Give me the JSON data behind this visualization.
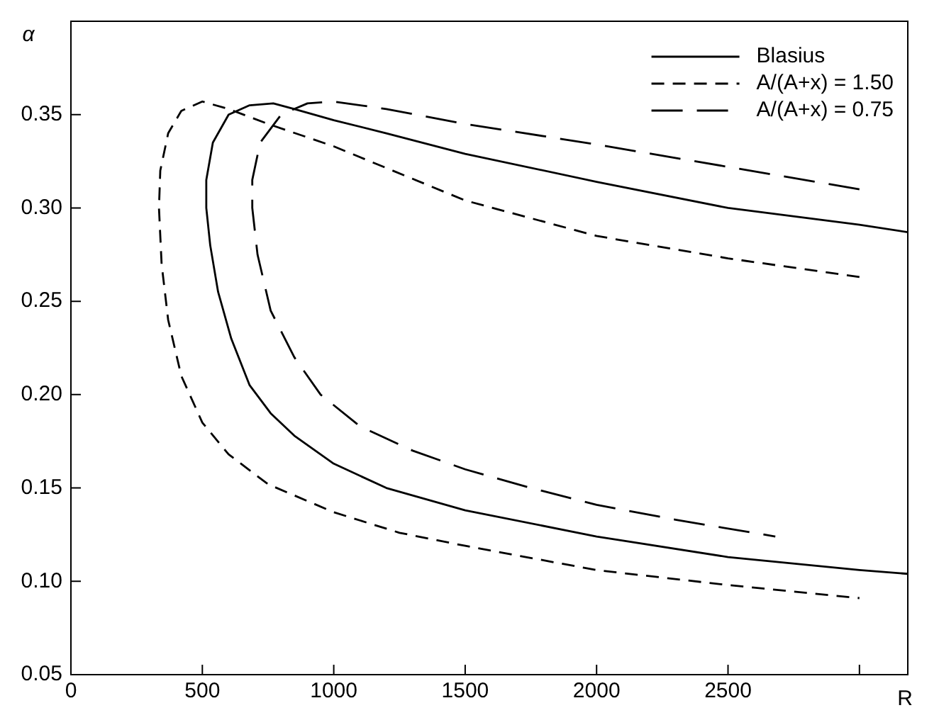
{
  "chart_data": {
    "type": "line",
    "xlabel": "R",
    "ylabel": "α",
    "xlim": [
      0,
      3184
    ],
    "ylim": [
      0.05,
      0.4
    ],
    "xticks": [
      0,
      500,
      1000,
      1500,
      2000,
      2500,
      {
        "value": 3000,
        "label": null
      }
    ],
    "yticks": [
      0.05,
      {
        "value": 0.1,
        "label": "0.10"
      },
      0.15,
      {
        "value": 0.2,
        "label": "0.20"
      },
      0.25,
      {
        "value": 0.3,
        "label": "0.30"
      },
      0.35
    ],
    "grid": false,
    "legend": "top right",
    "marker": "none",
    "series": [
      {
        "name": "Blasius",
        "color": "#000000",
        "line_style": "solid",
        "x": [
          3184,
          3000,
          2500,
          2000,
          1500,
          1200,
          1000,
          850,
          770,
          680,
          600,
          540,
          515,
          515,
          530,
          560,
          610,
          680,
          760,
          850,
          1000,
          1200,
          1500,
          2000,
          2500,
          3000,
          3184
        ],
        "values": [
          0.287,
          0.291,
          0.3,
          0.314,
          0.329,
          0.34,
          0.347,
          0.353,
          0.356,
          0.355,
          0.35,
          0.335,
          0.315,
          0.3,
          0.28,
          0.255,
          0.23,
          0.205,
          0.19,
          0.178,
          0.163,
          0.15,
          0.138,
          0.124,
          0.113,
          0.106,
          0.104
        ]
      },
      {
        "name": "A/(A+x) = 1.50",
        "color": "#000000",
        "line_style": "dashed",
        "x": [
          3000,
          2500,
          2000,
          1500,
          1000,
          750,
          600,
          500,
          420,
          370,
          340,
          335,
          345,
          370,
          420,
          500,
          600,
          750,
          1000,
          1250,
          1500,
          2000,
          2500,
          3000
        ],
        "values": [
          0.263,
          0.273,
          0.285,
          0.304,
          0.333,
          0.345,
          0.353,
          0.357,
          0.352,
          0.34,
          0.32,
          0.3,
          0.27,
          0.24,
          0.21,
          0.185,
          0.168,
          0.152,
          0.137,
          0.126,
          0.119,
          0.106,
          0.098,
          0.091
        ]
      },
      {
        "name": "A/(A+x) = 0.75",
        "color": "#000000",
        "line_style": "longdash",
        "x": [
          3000,
          2500,
          2000,
          1500,
          1200,
          1000,
          900,
          800,
          720,
          690,
          690,
          710,
          760,
          850,
          950,
          1100,
          1300,
          1500,
          1750,
          2000,
          2300,
          2680
        ],
        "values": [
          0.31,
          0.322,
          0.334,
          0.345,
          0.353,
          0.357,
          0.356,
          0.35,
          0.335,
          0.315,
          0.3,
          0.275,
          0.245,
          0.22,
          0.2,
          0.183,
          0.17,
          0.16,
          0.15,
          0.141,
          0.133,
          0.124
        ]
      }
    ]
  }
}
